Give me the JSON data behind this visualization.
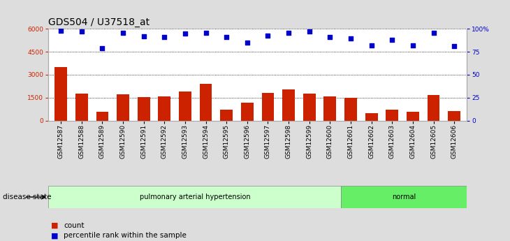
{
  "title": "GDS504 / U37518_at",
  "categories": [
    "GSM12587",
    "GSM12588",
    "GSM12589",
    "GSM12590",
    "GSM12591",
    "GSM12592",
    "GSM12593",
    "GSM12594",
    "GSM12595",
    "GSM12596",
    "GSM12597",
    "GSM12598",
    "GSM12599",
    "GSM12600",
    "GSM12601",
    "GSM12602",
    "GSM12603",
    "GSM12604",
    "GSM12605",
    "GSM12606"
  ],
  "counts": [
    3500,
    1750,
    550,
    1700,
    1550,
    1600,
    1900,
    2400,
    700,
    1150,
    1800,
    2050,
    1750,
    1600,
    1500,
    500,
    700,
    550,
    1650,
    600
  ],
  "percentiles": [
    98,
    97,
    79,
    96,
    92,
    91,
    95,
    96,
    91,
    85,
    93,
    96,
    97,
    91,
    90,
    82,
    88,
    82,
    96,
    81
  ],
  "bar_color": "#cc2200",
  "dot_color": "#0000cc",
  "ylim_left": [
    0,
    6000
  ],
  "ylim_right": [
    0,
    100
  ],
  "yticks_left": [
    0,
    1500,
    3000,
    4500,
    6000
  ],
  "yticks_right": [
    0,
    25,
    50,
    75,
    100
  ],
  "disease_groups": [
    {
      "label": "pulmonary arterial hypertension",
      "start": 0,
      "end": 14,
      "color": "#ccffcc"
    },
    {
      "label": "normal",
      "start": 14,
      "end": 20,
      "color": "#66ee66"
    }
  ],
  "disease_state_label": "disease state",
  "legend_count_label": "count",
  "legend_percentile_label": "percentile rank within the sample",
  "bg_color": "#dddddd",
  "plot_bg_color": "#ffffff",
  "gridline_color": "#000000",
  "title_fontsize": 10,
  "tick_fontsize": 6.5,
  "label_fontsize": 7.5
}
